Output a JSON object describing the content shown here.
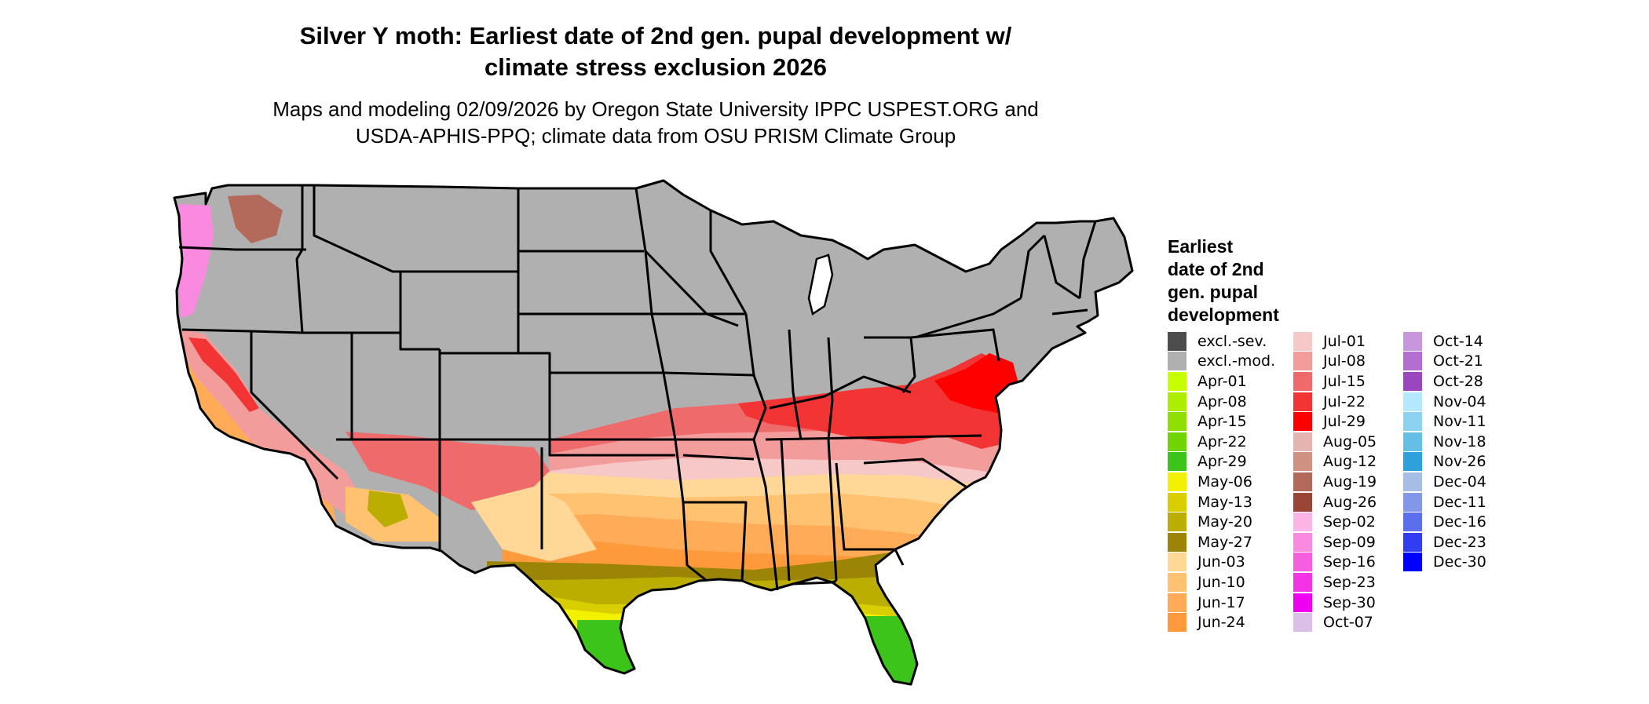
{
  "title_line1": "Silver Y moth: Earliest date of 2nd gen. pupal development w/",
  "title_line2": "climate stress exclusion 2026",
  "subtitle_line1": "Maps and modeling 02/09/2026 by Oregon State University IPPC USPEST.ORG and",
  "subtitle_line2": "USDA-APHIS-PPQ; climate data from OSU PRISM Climate Group",
  "legend": {
    "title_lines": [
      "Earliest",
      "date of 2nd",
      "gen. pupal",
      "development"
    ],
    "columns": [
      [
        {
          "label": "excl.-sev.",
          "color": "#4d4d4d"
        },
        {
          "label": "excl.-mod.",
          "color": "#b0b0b0"
        },
        {
          "label": "Apr-01",
          "color": "#c6ff00"
        },
        {
          "label": "Apr-08",
          "color": "#adee00"
        },
        {
          "label": "Apr-15",
          "color": "#8fe000"
        },
        {
          "label": "Apr-22",
          "color": "#6fd400"
        },
        {
          "label": "Apr-29",
          "color": "#3cc41a"
        },
        {
          "label": "May-06",
          "color": "#f2f200"
        },
        {
          "label": "May-13",
          "color": "#d8ce00"
        },
        {
          "label": "May-20",
          "color": "#bcae00"
        },
        {
          "label": "May-27",
          "color": "#9c8406"
        },
        {
          "label": "Jun-03",
          "color": "#ffd898"
        },
        {
          "label": "Jun-10",
          "color": "#ffc270"
        },
        {
          "label": "Jun-17",
          "color": "#ffab58"
        },
        {
          "label": "Jun-24",
          "color": "#ff9a3c"
        }
      ],
      [
        {
          "label": "Jul-01",
          "color": "#f7c8c8"
        },
        {
          "label": "Jul-08",
          "color": "#f39c9c"
        },
        {
          "label": "Jul-15",
          "color": "#ef6b6b"
        },
        {
          "label": "Jul-22",
          "color": "#f23434"
        },
        {
          "label": "Jul-29",
          "color": "#ff0000"
        },
        {
          "label": "Aug-05",
          "color": "#e6b4b0"
        },
        {
          "label": "Aug-12",
          "color": "#cf9282"
        },
        {
          "label": "Aug-19",
          "color": "#b46a5a"
        },
        {
          "label": "Aug-26",
          "color": "#9a4636"
        },
        {
          "label": "Sep-02",
          "color": "#fbb4e6"
        },
        {
          "label": "Sep-09",
          "color": "#f98ae0"
        },
        {
          "label": "Sep-16",
          "color": "#f65ee0"
        },
        {
          "label": "Sep-23",
          "color": "#f333e6"
        },
        {
          "label": "Sep-30",
          "color": "#f000f0"
        },
        {
          "label": "Oct-07",
          "color": "#dcbfe6"
        }
      ],
      [
        {
          "label": "Oct-14",
          "color": "#c896dc"
        },
        {
          "label": "Oct-21",
          "color": "#b46ed2"
        },
        {
          "label": "Oct-28",
          "color": "#9a46be"
        },
        {
          "label": "Nov-04",
          "color": "#b4e8ff"
        },
        {
          "label": "Nov-11",
          "color": "#8ed2f2"
        },
        {
          "label": "Nov-18",
          "color": "#64bee6"
        },
        {
          "label": "Nov-26",
          "color": "#2ea0dc"
        },
        {
          "label": "Dec-04",
          "color": "#a6bee6"
        },
        {
          "label": "Dec-11",
          "color": "#8296ea"
        },
        {
          "label": "Dec-16",
          "color": "#5a6eee"
        },
        {
          "label": "Dec-23",
          "color": "#323cf2"
        },
        {
          "label": "Dec-30",
          "color": "#0000ff"
        }
      ]
    ]
  }
}
